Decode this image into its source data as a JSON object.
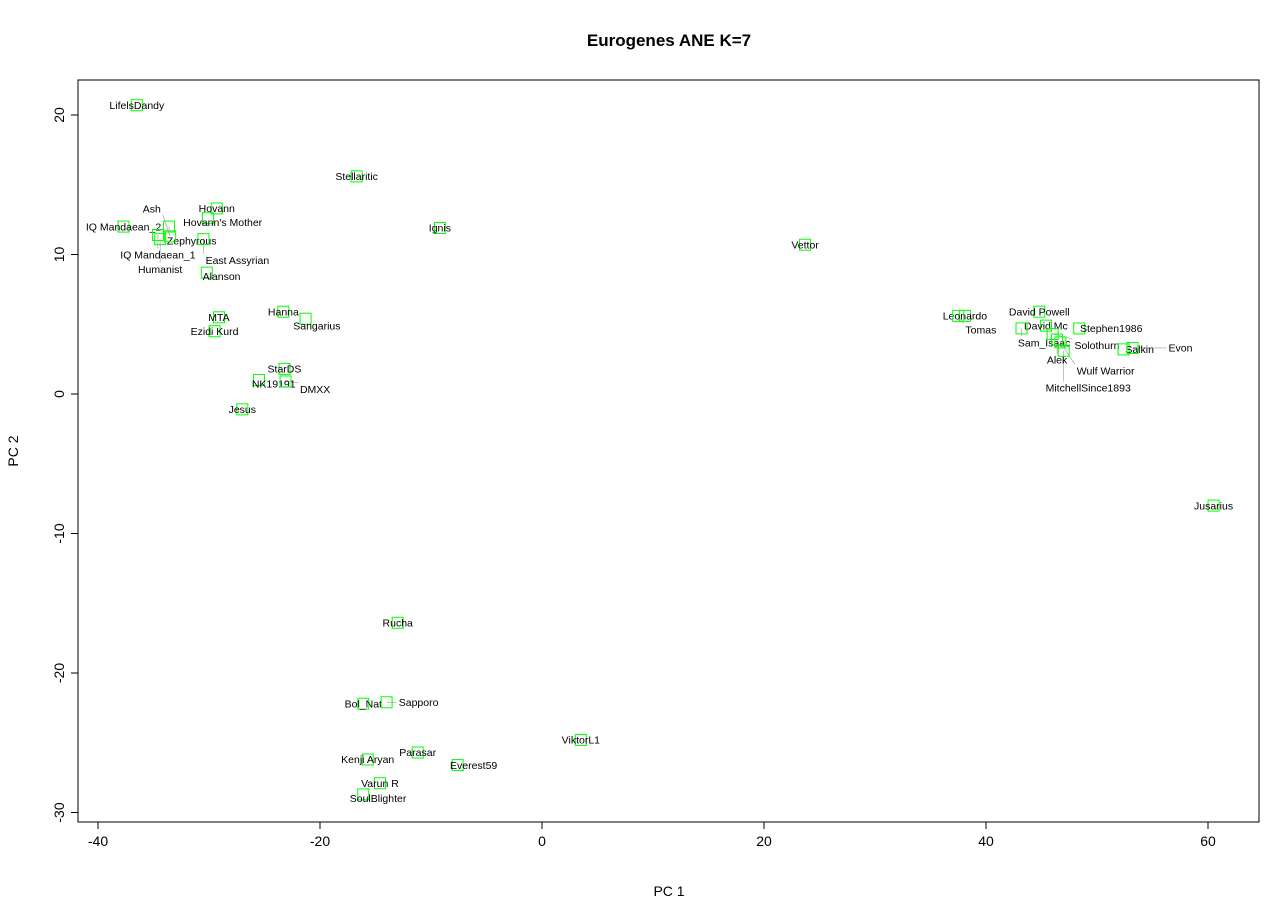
{
  "chart_data": {
    "type": "scatter",
    "title": "Eurogenes ANE K=7",
    "xlabel": "PC 1",
    "ylabel": "PC 2",
    "xlim": [
      -42,
      65
    ],
    "ylim": [
      -30.5,
      22.5
    ],
    "xticks": [
      -40,
      -20,
      0,
      20,
      40,
      60
    ],
    "yticks": [
      -30,
      -20,
      -10,
      0,
      10,
      20
    ],
    "grid": false,
    "marker_color": "#00ff00",
    "points": [
      {
        "label": "LifelsDandy",
        "x": -36.5,
        "y": 20.7
      },
      {
        "label": "Stellaritic",
        "x": -16.7,
        "y": 15.6
      },
      {
        "label": "Hovann",
        "x": -29.3,
        "y": 13.3
      },
      {
        "label": "Hovann's Mother",
        "x": -30.1,
        "y": 12.6
      },
      {
        "label": "IQ Mandaean_2",
        "x": -37.7,
        "y": 12.0
      },
      {
        "label": "Zephyrous",
        "x": -33.6,
        "y": 12.0
      },
      {
        "label": "IQ Mandaean_1",
        "x": -34.6,
        "y": 11.4
      },
      {
        "label": "Humanist",
        "x": -34.4,
        "y": 11.1
      },
      {
        "label": "Ash",
        "x": -33.5,
        "y": 11.3
      },
      {
        "label": "East Assyrian",
        "x": -30.5,
        "y": 11.1
      },
      {
        "label": "Ignis",
        "x": -9.2,
        "y": 11.9
      },
      {
        "label": "Vettor",
        "x": 23.7,
        "y": 10.7
      },
      {
        "label": "Alanson",
        "x": -30.2,
        "y": 8.7
      },
      {
        "label": "MTA",
        "x": -29.1,
        "y": 5.5
      },
      {
        "label": "Ezidi Kurd",
        "x": -29.5,
        "y": 4.5
      },
      {
        "label": "Hanna",
        "x": -23.3,
        "y": 5.9
      },
      {
        "label": "Sangarius",
        "x": -21.3,
        "y": 5.4
      },
      {
        "label": "StarDS",
        "x": -23.2,
        "y": 1.8
      },
      {
        "label": "NK19191",
        "x": -25.5,
        "y": 1.0
      },
      {
        "label": "DMXX",
        "x": -23.1,
        "y": 0.9
      },
      {
        "label": "Jesus",
        "x": -27.0,
        "y": -1.1
      },
      {
        "label": "Leonardo",
        "x": 38.1,
        "y": 5.6
      },
      {
        "label": "Tomas",
        "x": 37.5,
        "y": 5.6
      },
      {
        "label": "David Powell",
        "x": 44.8,
        "y": 5.9
      },
      {
        "label": "David Mc",
        "x": 45.4,
        "y": 4.9
      },
      {
        "label": "Sam_Isaac",
        "x": 43.2,
        "y": 4.7
      },
      {
        "label": "Stephen1986",
        "x": 48.4,
        "y": 4.7
      },
      {
        "label": "Solothurn",
        "x": 46.0,
        "y": 4.3
      },
      {
        "label": "Alek",
        "x": 46.4,
        "y": 3.9
      },
      {
        "label": "Wulf Warrior",
        "x": 46.7,
        "y": 3.7
      },
      {
        "label": "MitchellSince1893",
        "x": 47.0,
        "y": 3.1
      },
      {
        "label": "Salkin",
        "x": 52.4,
        "y": 3.2
      },
      {
        "label": "Evon",
        "x": 53.2,
        "y": 3.3
      },
      {
        "label": "Jusarius",
        "x": 60.5,
        "y": -8.0
      },
      {
        "label": "Rucha",
        "x": -13.0,
        "y": -16.4
      },
      {
        "label": "Bol_Nat",
        "x": -16.1,
        "y": -22.2
      },
      {
        "label": "Sapporo",
        "x": -14.0,
        "y": -22.1
      },
      {
        "label": "ViktorL1",
        "x": 3.5,
        "y": -24.8
      },
      {
        "label": "Parasar",
        "x": -11.2,
        "y": -25.7
      },
      {
        "label": "Kenji Aryan",
        "x": -15.7,
        "y": -26.2
      },
      {
        "label": "Everest59",
        "x": -7.6,
        "y": -26.6
      },
      {
        "label": "Varun R",
        "x": -14.6,
        "y": -27.9
      },
      {
        "label": "SoulBlighter",
        "x": -16.1,
        "y": -28.7
      }
    ]
  }
}
